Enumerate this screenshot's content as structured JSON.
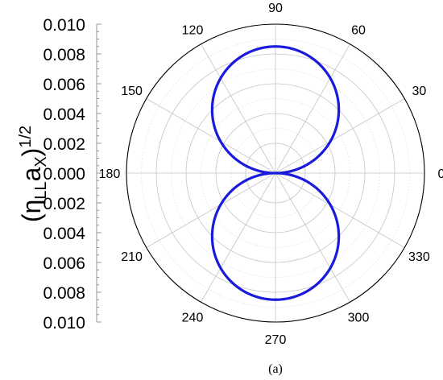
{
  "chart_data": {
    "type": "polar-line",
    "panel_label": "(a)",
    "ylabel": {
      "prefix": "(η",
      "sub1": "LL",
      "mid": "a",
      "sub2": "X",
      "close": ")",
      "sup": "1/2"
    },
    "radial_axis": {
      "range": [
        0,
        0.01
      ],
      "tick_labels_upper": [
        "0.010",
        "0.008",
        "0.006",
        "0.004",
        "0.002",
        "0.000"
      ],
      "tick_labels_lower": [
        "0.002",
        "0.004",
        "0.006",
        "0.008",
        "0.010"
      ]
    },
    "angular_axis": {
      "unit": "deg",
      "ticks": [
        0,
        30,
        60,
        90,
        120,
        150,
        180,
        210,
        240,
        270,
        300,
        330
      ],
      "tick_labels": [
        "0",
        "30",
        "60",
        "90",
        "120",
        "150",
        "180",
        "210",
        "240",
        "270",
        "300",
        "330"
      ]
    },
    "series": [
      {
        "color": "#1a1adb",
        "function": "r = rmax * |sin(theta)|",
        "rmax": 0.0085
      }
    ],
    "grid": true
  }
}
